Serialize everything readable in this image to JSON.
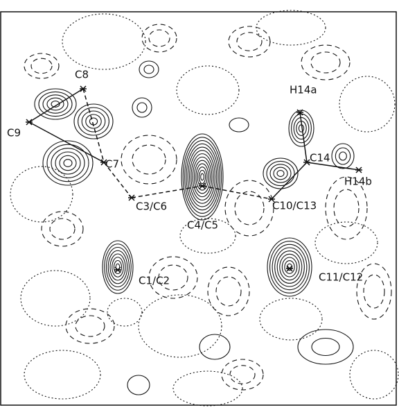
{
  "atoms": [
    {
      "label": "C8"
    },
    {
      "label": "C9"
    },
    {
      "label": "C7"
    },
    {
      "label": "C3/C6"
    },
    {
      "label": "C4/C5"
    },
    {
      "label": "C10/C13"
    },
    {
      "label": "C14"
    },
    {
      "label": "H14a"
    },
    {
      "label": "H14b"
    },
    {
      "label": "C1/C2"
    },
    {
      "label": "C11/C12"
    }
  ]
}
